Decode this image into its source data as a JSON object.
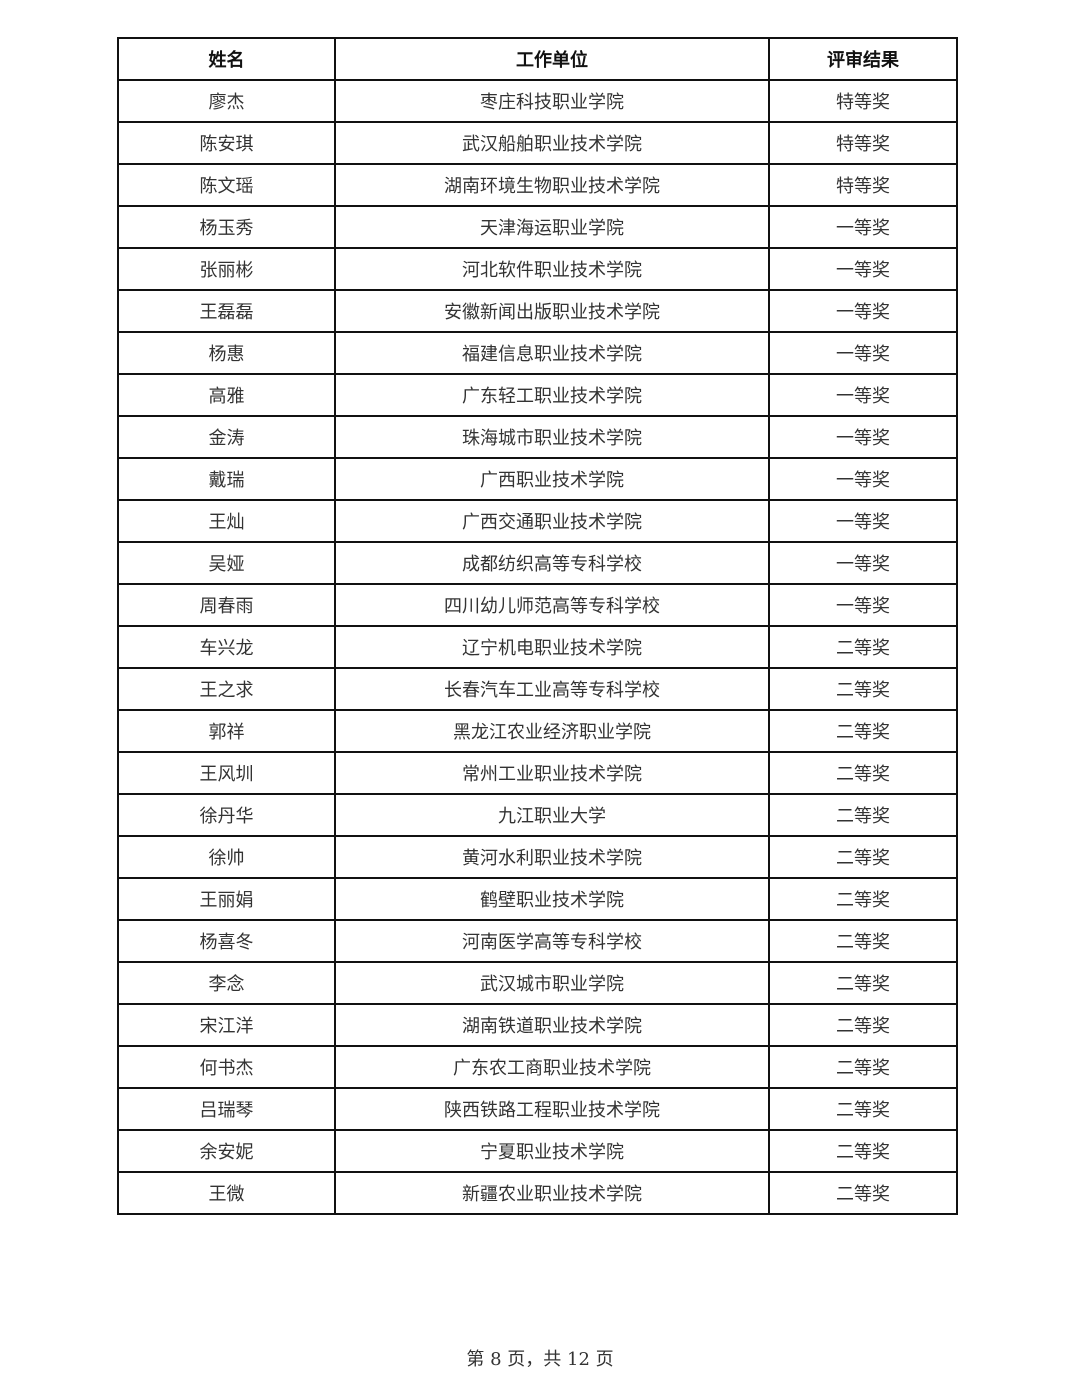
{
  "table": {
    "headers": [
      "姓名",
      "工作单位",
      "评审结果"
    ],
    "rows": [
      [
        "廖杰",
        "枣庄科技职业学院",
        "特等奖"
      ],
      [
        "陈安琪",
        "武汉船舶职业技术学院",
        "特等奖"
      ],
      [
        "陈文瑶",
        "湖南环境生物职业技术学院",
        "特等奖"
      ],
      [
        "杨玉秀",
        "天津海运职业学院",
        "一等奖"
      ],
      [
        "张丽彬",
        "河北软件职业技术学院",
        "一等奖"
      ],
      [
        "王磊磊",
        "安徽新闻出版职业技术学院",
        "一等奖"
      ],
      [
        "杨惠",
        "福建信息职业技术学院",
        "一等奖"
      ],
      [
        "高雅",
        "广东轻工职业技术学院",
        "一等奖"
      ],
      [
        "金涛",
        "珠海城市职业技术学院",
        "一等奖"
      ],
      [
        "戴瑞",
        "广西职业技术学院",
        "一等奖"
      ],
      [
        "王灿",
        "广西交通职业技术学院",
        "一等奖"
      ],
      [
        "吴娅",
        "成都纺织高等专科学校",
        "一等奖"
      ],
      [
        "周春雨",
        "四川幼儿师范高等专科学校",
        "一等奖"
      ],
      [
        "车兴龙",
        "辽宁机电职业技术学院",
        "二等奖"
      ],
      [
        "王之求",
        "长春汽车工业高等专科学校",
        "二等奖"
      ],
      [
        "郭祥",
        "黑龙江农业经济职业学院",
        "二等奖"
      ],
      [
        "王风圳",
        "常州工业职业技术学院",
        "二等奖"
      ],
      [
        "徐丹华",
        "九江职业大学",
        "二等奖"
      ],
      [
        "徐帅",
        "黄河水利职业技术学院",
        "二等奖"
      ],
      [
        "王丽娟",
        "鹤壁职业技术学院",
        "二等奖"
      ],
      [
        "杨喜冬",
        "河南医学高等专科学校",
        "二等奖"
      ],
      [
        "李念",
        "武汉城市职业学院",
        "二等奖"
      ],
      [
        "宋江洋",
        "湖南铁道职业技术学院",
        "二等奖"
      ],
      [
        "何书杰",
        "广东农工商职业技术学院",
        "二等奖"
      ],
      [
        "吕瑞琴",
        "陕西铁路工程职业技术学院",
        "二等奖"
      ],
      [
        "余安妮",
        "宁夏职业技术学院",
        "二等奖"
      ],
      [
        "王微",
        "新疆农业职业技术学院",
        "二等奖"
      ]
    ]
  },
  "footer": {
    "page_label": "第 8 页，共 12 页"
  }
}
